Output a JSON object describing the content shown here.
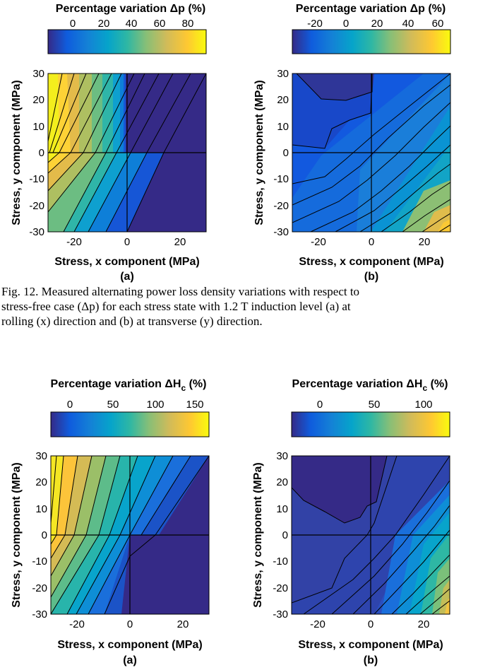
{
  "fig12": {
    "a": {
      "panel_label": "(a)",
      "colorbar_title": "Percentage variation Δp (%)",
      "colorbar_ticks": [
        "0",
        "20",
        "40",
        "60",
        "80"
      ],
      "xlabel": "Stress, x component (MPa)",
      "ylabel": "Stress, y component (MPa)",
      "xticks": [
        "-20",
        "0",
        "20"
      ],
      "yticks": [
        "30",
        "20",
        "10",
        "0",
        "-10",
        "-20",
        "-30"
      ]
    },
    "b": {
      "panel_label": "(b)",
      "colorbar_title": "Percentage variation Δp (%)",
      "colorbar_ticks": [
        "-20",
        "0",
        "20",
        "40",
        "60"
      ],
      "xlabel": "Stress, x component (MPa)",
      "ylabel": "Stress, y component (MPa)",
      "xticks": [
        "-20",
        "0",
        "20"
      ],
      "yticks": [
        "30",
        "20",
        "10",
        "0",
        "-10",
        "-20",
        "-30"
      ]
    }
  },
  "caption": {
    "line1": "Fig. 12.   Measured alternating power loss density variations with respect to",
    "line2": "stress-free case (Δp) for each stress state with 1.2 T induction level (a) at",
    "line3": "rolling (x) direction and (b) at transverse (y) direction."
  },
  "fig13": {
    "a": {
      "panel_label": "(a)",
      "colorbar_title": "Percentage variation ΔH",
      "colorbar_title_sub": "c",
      "colorbar_title_suffix": " (%)",
      "colorbar_ticks": [
        "0",
        "50",
        "100",
        "150"
      ],
      "xlabel": "Stress, x component (MPa)",
      "ylabel": "Stress, y component (MPa)",
      "xticks": [
        "-20",
        "0",
        "20"
      ],
      "yticks": [
        "30",
        "20",
        "10",
        "0",
        "-10",
        "-20",
        "-30"
      ]
    },
    "b": {
      "panel_label": "(b)",
      "colorbar_title": "Percentage variation ΔH",
      "colorbar_title_sub": "c",
      "colorbar_title_suffix": " (%)",
      "colorbar_ticks": [
        "0",
        "50",
        "100"
      ],
      "xlabel": "Stress, x component (MPa)",
      "ylabel": "Stress, y component (MPa)",
      "xticks": [
        "-20",
        "0",
        "20"
      ],
      "yticks": [
        "30",
        "20",
        "10",
        "0",
        "-10",
        "-20",
        "-30"
      ]
    }
  },
  "chart_data": [
    {
      "type": "heatmap",
      "panel": "Fig. 12 (a)",
      "title": "Percentage variation Δp (%)",
      "xlabel": "Stress, x component (MPa)",
      "ylabel": "Stress, y component (MPa)",
      "xlim": [
        -30,
        30
      ],
      "ylim": [
        -30,
        30
      ],
      "clim": [
        -10,
        95
      ],
      "xticks": [
        -20,
        0,
        20
      ],
      "yticks": [
        -30,
        -20,
        -10,
        0,
        10,
        20,
        30
      ],
      "colorbar_ticks": [
        0,
        20,
        40,
        60,
        80
      ],
      "colormap": "parula"
    },
    {
      "type": "heatmap",
      "panel": "Fig. 12 (b)",
      "title": "Percentage variation Δp (%)",
      "xlabel": "Stress, x component (MPa)",
      "ylabel": "Stress, y component (MPa)",
      "xlim": [
        -30,
        30
      ],
      "ylim": [
        -30,
        30
      ],
      "clim": [
        -35,
        70
      ],
      "xticks": [
        -20,
        0,
        20
      ],
      "yticks": [
        -30,
        -20,
        -10,
        0,
        10,
        20,
        30
      ],
      "colorbar_ticks": [
        -20,
        0,
        20,
        40,
        60
      ],
      "colormap": "parula"
    },
    {
      "type": "heatmap",
      "panel": "Fig. 13 (a)",
      "title": "Percentage variation ΔHc (%)",
      "xlabel": "Stress, x component (MPa)",
      "ylabel": "Stress, y component (MPa)",
      "xlim": [
        -30,
        30
      ],
      "ylim": [
        -30,
        30
      ],
      "clim": [
        -15,
        165
      ],
      "xticks": [
        -20,
        0,
        20
      ],
      "yticks": [
        -30,
        -20,
        -10,
        0,
        10,
        20,
        30
      ],
      "colorbar_ticks": [
        0,
        50,
        100,
        150
      ],
      "colormap": "parula"
    },
    {
      "type": "heatmap",
      "panel": "Fig. 13 (b)",
      "title": "Percentage variation ΔHc (%)",
      "xlabel": "Stress, x component (MPa)",
      "ylabel": "Stress, y component (MPa)",
      "xlim": [
        -30,
        30
      ],
      "ylim": [
        -30,
        30
      ],
      "clim": [
        -20,
        130
      ],
      "xticks": [
        -20,
        0,
        20
      ],
      "yticks": [
        -30,
        -20,
        -10,
        0,
        10,
        20,
        30
      ],
      "colorbar_ticks": [
        0,
        50,
        100
      ],
      "colormap": "parula"
    }
  ]
}
